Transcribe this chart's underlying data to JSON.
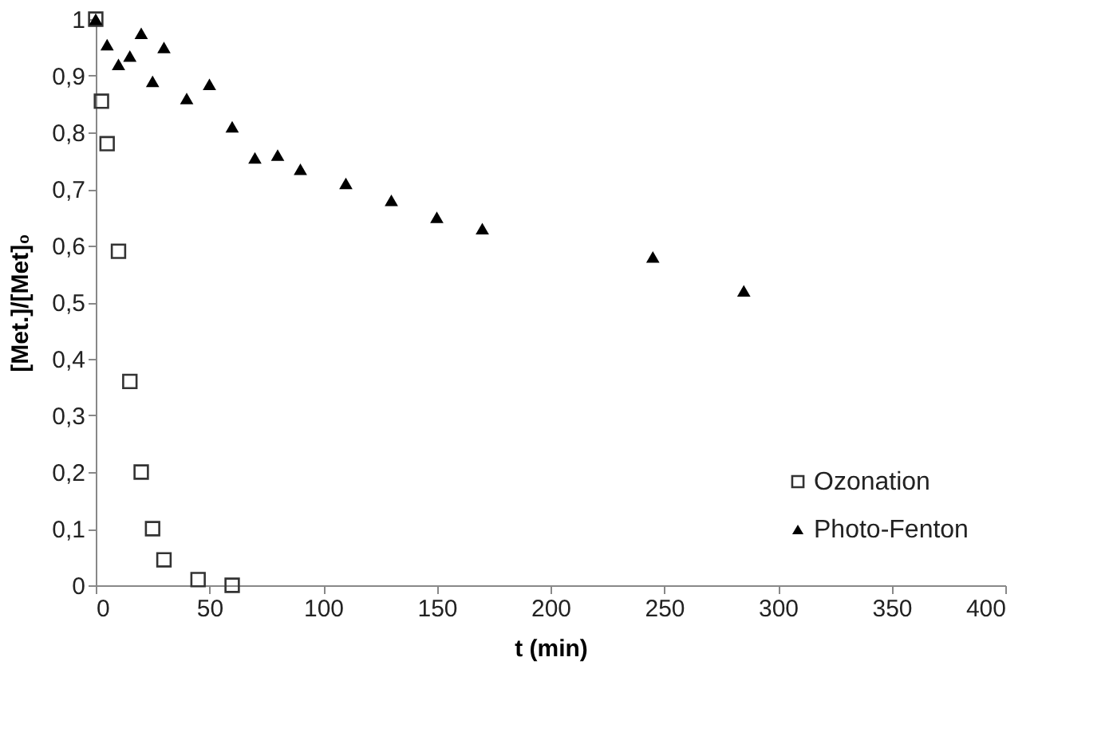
{
  "chart_data": {
    "type": "scatter",
    "xlabel": "t (min)",
    "ylabel": "[Met.]/[Met]₀",
    "xlim": [
      0,
      400
    ],
    "xticks": [
      0,
      50,
      100,
      150,
      200,
      250,
      300,
      350,
      400
    ],
    "ylim": [
      0,
      1
    ],
    "yticks": [
      0,
      {
        "value": 0.1,
        "label": "0,1"
      },
      {
        "value": 0.2,
        "label": "0,2"
      },
      {
        "value": 0.3,
        "label": "0,3"
      },
      {
        "value": 0.4,
        "label": "0,4"
      },
      {
        "value": 0.5,
        "label": "0,5"
      },
      {
        "value": 0.6,
        "label": "0,6"
      },
      {
        "value": 0.7,
        "label": "0,7"
      },
      {
        "value": 0.8,
        "label": "0,8"
      },
      {
        "value": 0.9,
        "label": "0,9"
      },
      1
    ],
    "grid": false,
    "legend": "bottom right",
    "series": [
      {
        "name": "Ozonation",
        "color": "#333333",
        "marker": "square",
        "x": [
          0,
          2.5,
          5,
          10,
          15,
          20,
          25,
          30,
          45,
          60
        ],
        "values": [
          1,
          0.855,
          0.78,
          0.59,
          0.36,
          0.2,
          0.1,
          0.045,
          0.01,
          0.0
        ]
      },
      {
        "name": "Photo-Fenton",
        "color": "#000000",
        "marker": "triangle",
        "x": [
          0,
          5,
          10,
          15,
          20,
          25,
          30,
          40,
          50,
          60,
          70,
          80,
          90,
          110,
          130,
          150,
          170,
          245,
          285
        ],
        "values": [
          1,
          0.955,
          0.92,
          0.935,
          0.975,
          0.89,
          0.95,
          0.86,
          0.885,
          0.81,
          0.755,
          0.76,
          0.735,
          0.71,
          0.68,
          0.65,
          0.63,
          0.58,
          0.52
        ]
      }
    ]
  }
}
